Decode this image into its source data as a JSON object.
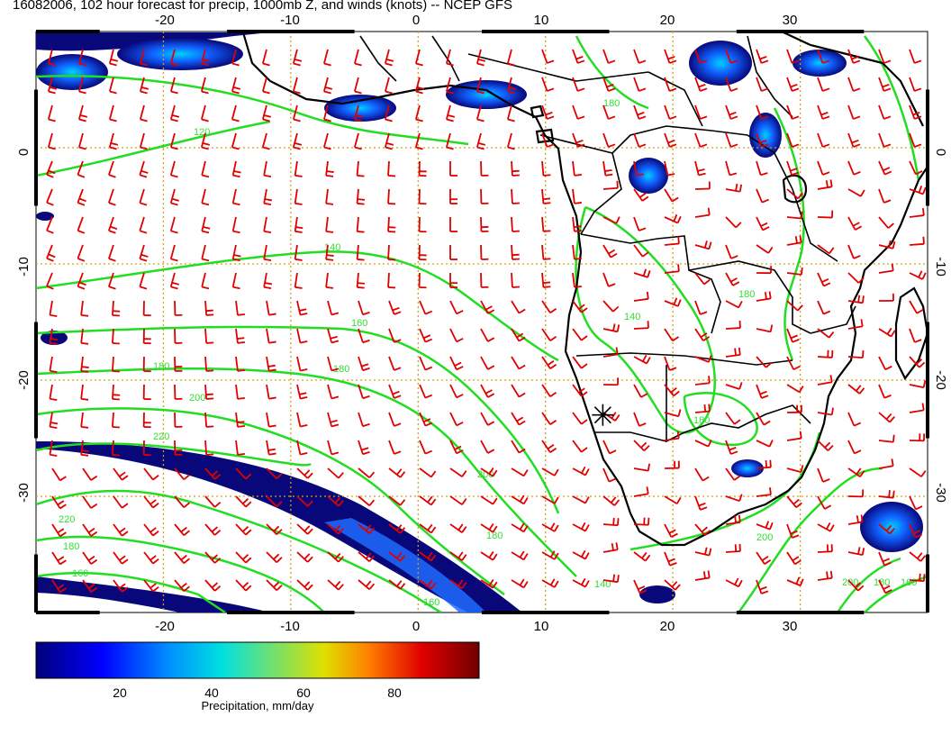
{
  "title": "16082006, 102 hour forecast for precip, 1000mb Z, and winds (knots) -- NCEP GFS",
  "colors": {
    "wind": "#e00000",
    "contour": "#22dd22",
    "coast": "#000000",
    "grid": "#d4a017",
    "precip_low": "#08087a",
    "precip_mid": "#1e90ff"
  },
  "map": {
    "lon_range": [
      -30,
      40
    ],
    "lat_range": [
      -40,
      10
    ],
    "top_lon_ticks": [
      "-20",
      "-10",
      "0",
      "10",
      "20",
      "30"
    ],
    "bottom_lon_ticks": [
      "-20",
      "-10",
      "0",
      "10",
      "20",
      "30"
    ],
    "lat_ticks": [
      "0",
      "-10",
      "-20",
      "-30"
    ],
    "contour_labels": [
      "120",
      "140",
      "160",
      "180",
      "180",
      "200",
      "220",
      "200",
      "180",
      "160",
      "140",
      "180",
      "200",
      "180",
      "160",
      "220",
      "200",
      "180",
      "160",
      "140",
      "180",
      "180"
    ],
    "marker": {
      "lon": 14.5,
      "lat": -23,
      "icon": "star-marker-icon"
    }
  },
  "colorbar": {
    "tick_labels": [
      "20",
      "40",
      "60",
      "80"
    ],
    "title": "Precipitation, mm/day",
    "range": [
      0,
      100
    ]
  }
}
